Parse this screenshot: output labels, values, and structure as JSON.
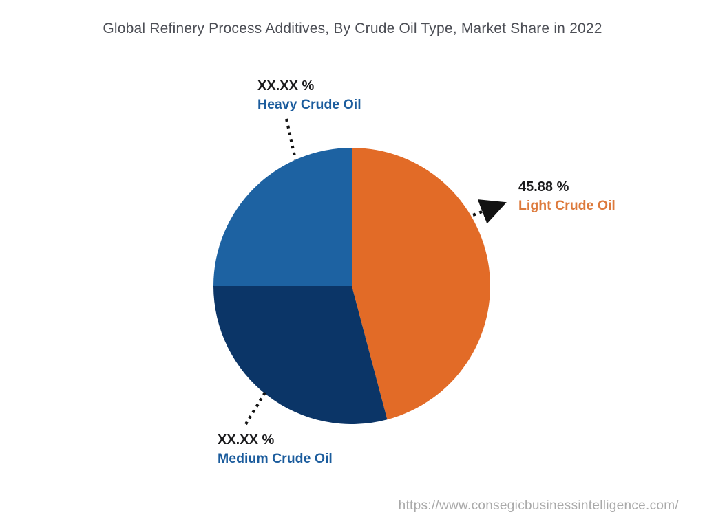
{
  "colors": {
    "background": "#ffffff",
    "title_text": "#4c4e55",
    "value_text": "#1b1b1d",
    "leader_line": "#121212",
    "watermark_text": "#a9a9a9"
  },
  "chart_data": {
    "type": "pie",
    "title": "Global Refinery Process Additives, By Crude Oil Type, Market Share in 2022",
    "start_angle_deg": 0,
    "direction": "clockwise",
    "legend_position": "none (callout labels with dotted leader lines)",
    "slices": [
      {
        "name": "Light Crude Oil",
        "display_pct": "45.88 %",
        "value_pct": 45.88,
        "estimated": false,
        "color": "#e26b27",
        "label_color": "#dd7a3c"
      },
      {
        "name": "Medium Crude Oil",
        "display_pct": "XX.XX %",
        "value_pct": 29.12,
        "estimated": true,
        "color": "#0b3567",
        "label_color": "#1b5c9d"
      },
      {
        "name": "Heavy Crude Oil",
        "display_pct": "XX.XX %",
        "value_pct": 25.0,
        "estimated": true,
        "color": "#1d62a2",
        "label_color": "#1b5c9d"
      }
    ]
  },
  "watermark": {
    "url_text": "https://www.consegicbusinessintelligence.com/"
  }
}
